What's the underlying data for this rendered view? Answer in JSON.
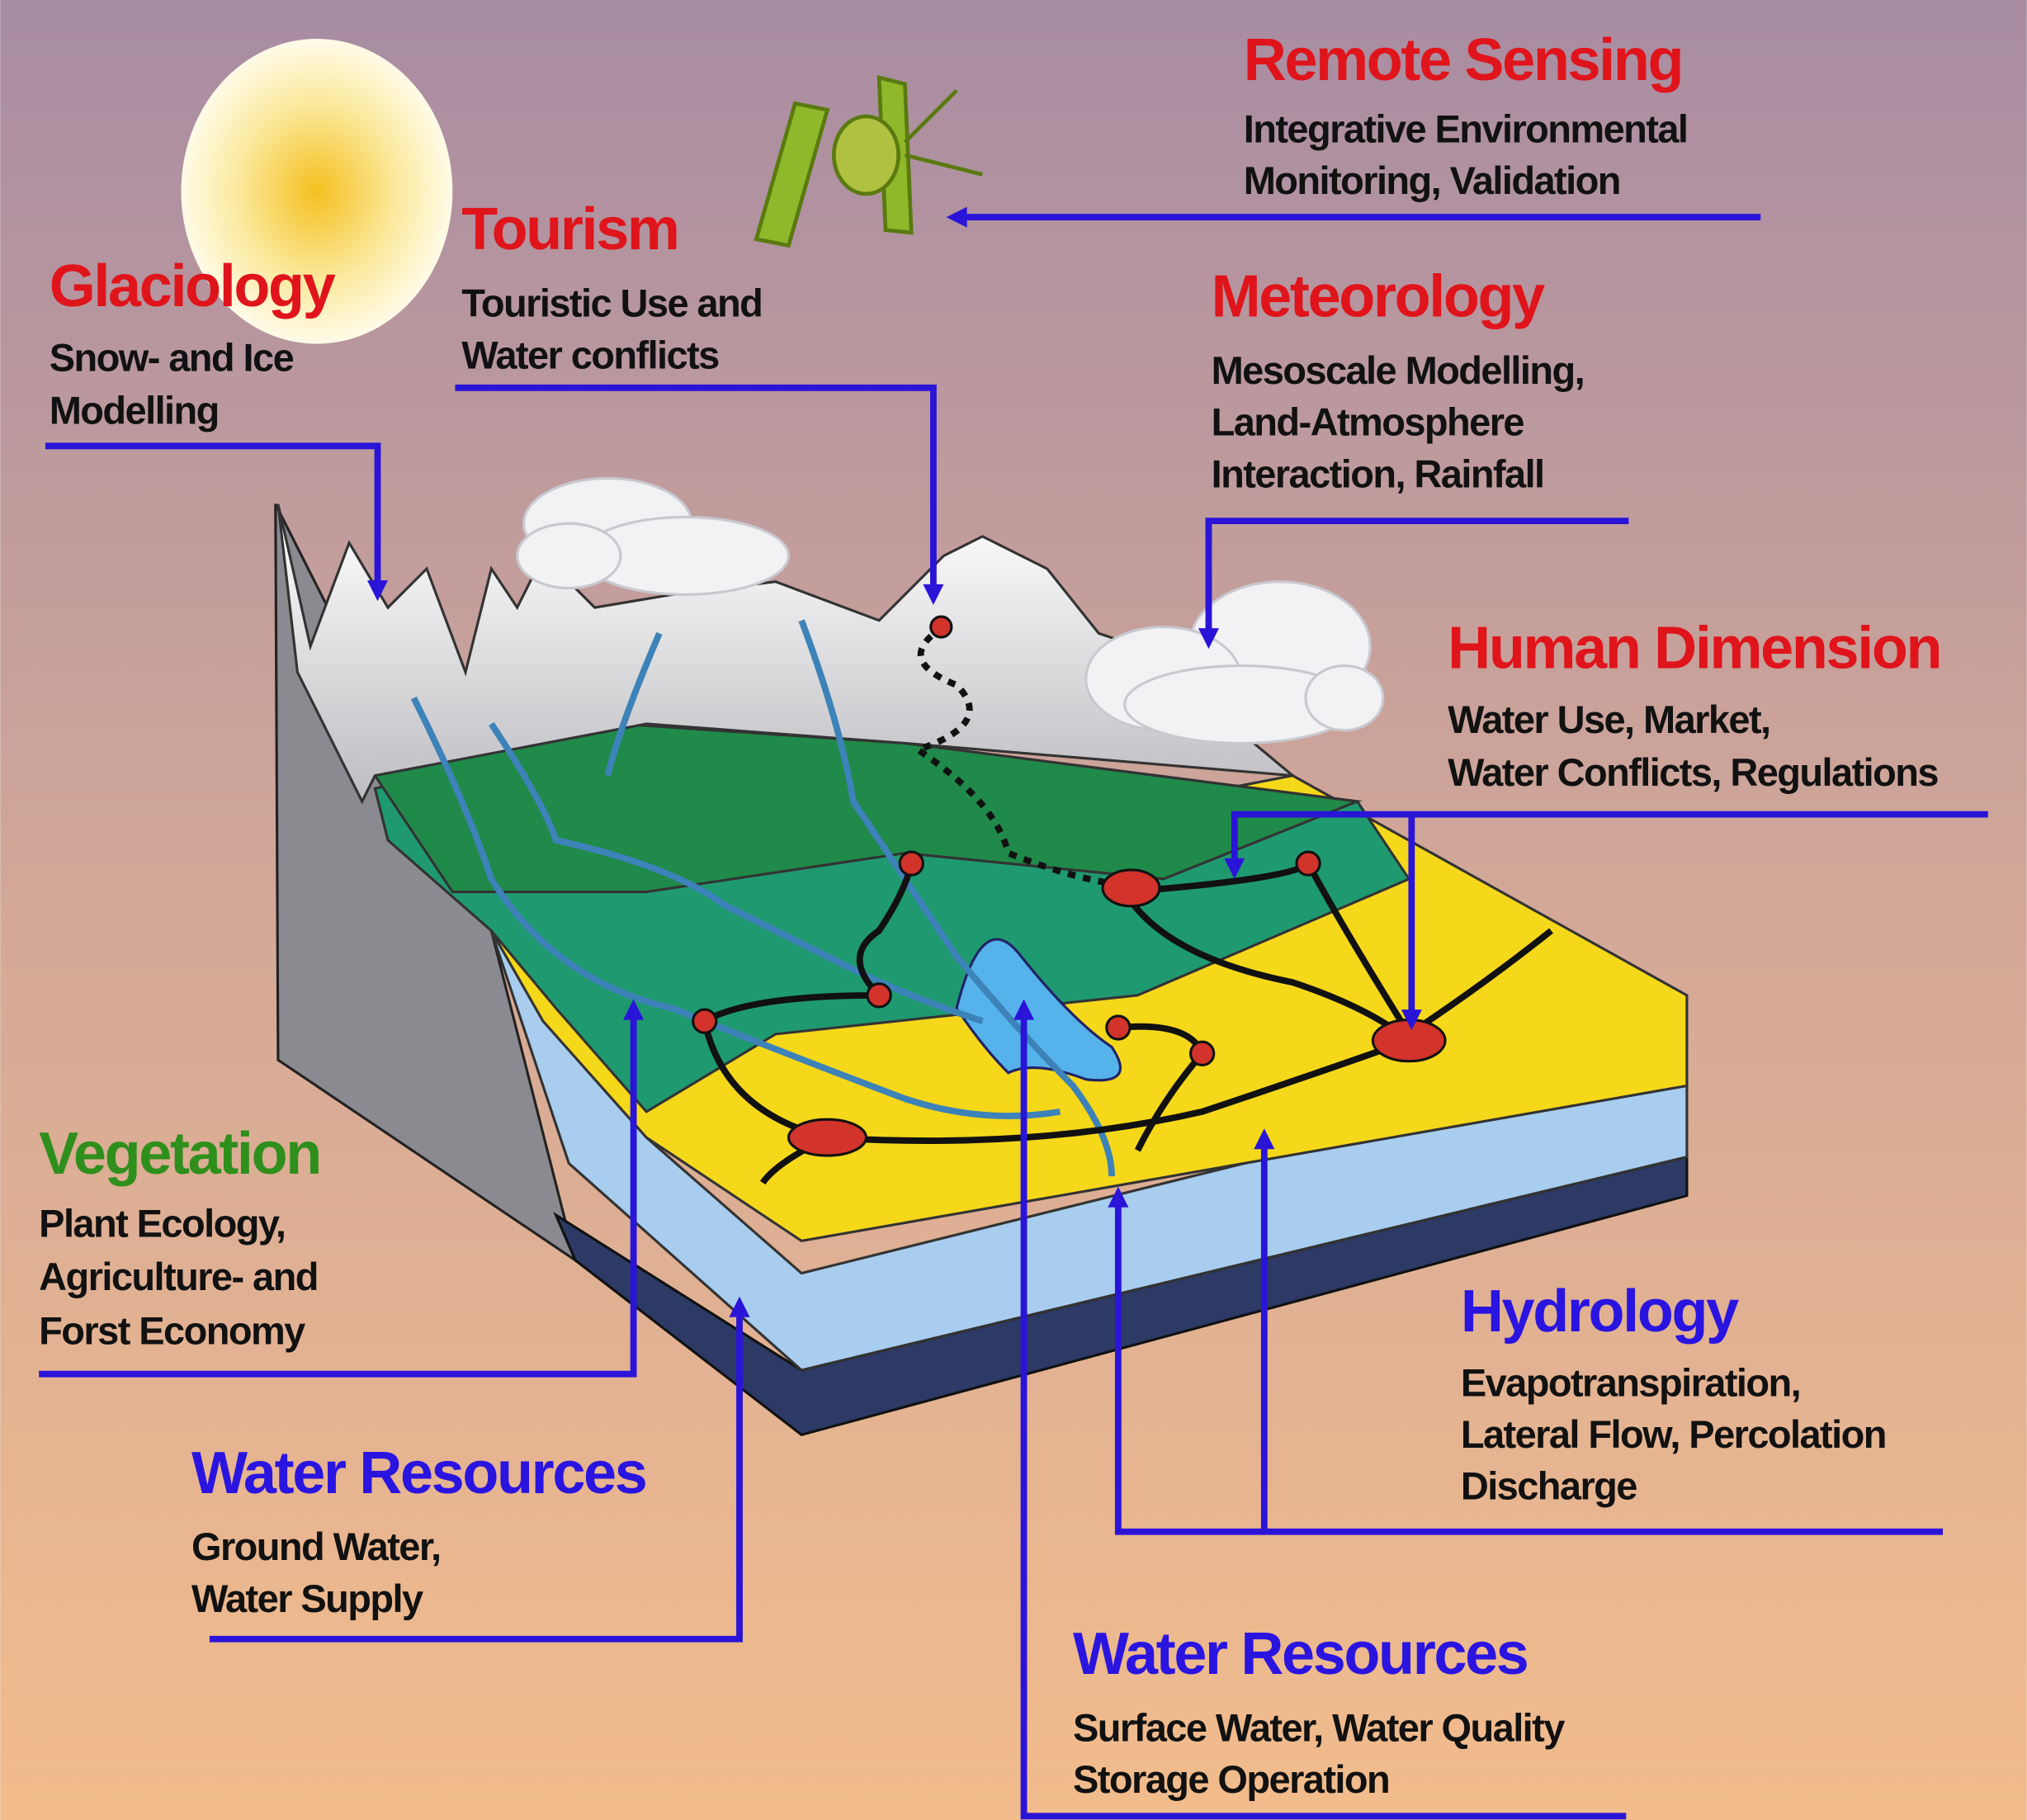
{
  "labels": [
    {
      "title": "Remote Sensing",
      "lines": [
        "Integrative Environmental",
        "Monitoring, Validation"
      ]
    },
    {
      "title": "Tourism",
      "lines": [
        "Touristic Use and",
        "Water conflicts"
      ]
    },
    {
      "title": "Glaciology",
      "lines": [
        "Snow- and Ice",
        "Modelling"
      ]
    },
    {
      "title": "Meteorology",
      "lines": [
        "Mesoscale Modelling,",
        "Land-Atmosphere",
        "Interaction, Rainfall"
      ]
    },
    {
      "title": "Human Dimension",
      "lines": [
        "Water Use, Market,",
        "Water Conflicts, Regulations"
      ]
    },
    {
      "title": "Vegetation",
      "lines": [
        "Plant Ecology,",
        "Agriculture- and",
        "Forst Economy"
      ]
    },
    {
      "title": "Water Resources",
      "lines": [
        "Ground Water,",
        "Water Supply"
      ]
    },
    {
      "title": "Hydrology",
      "lines": [
        "Evapotranspiration,",
        "Lateral Flow, Percolation",
        "Discharge"
      ]
    },
    {
      "title": "Water Resources",
      "lines": [
        "Surface Water, Water Quality",
        "Storage Operation"
      ]
    }
  ]
}
